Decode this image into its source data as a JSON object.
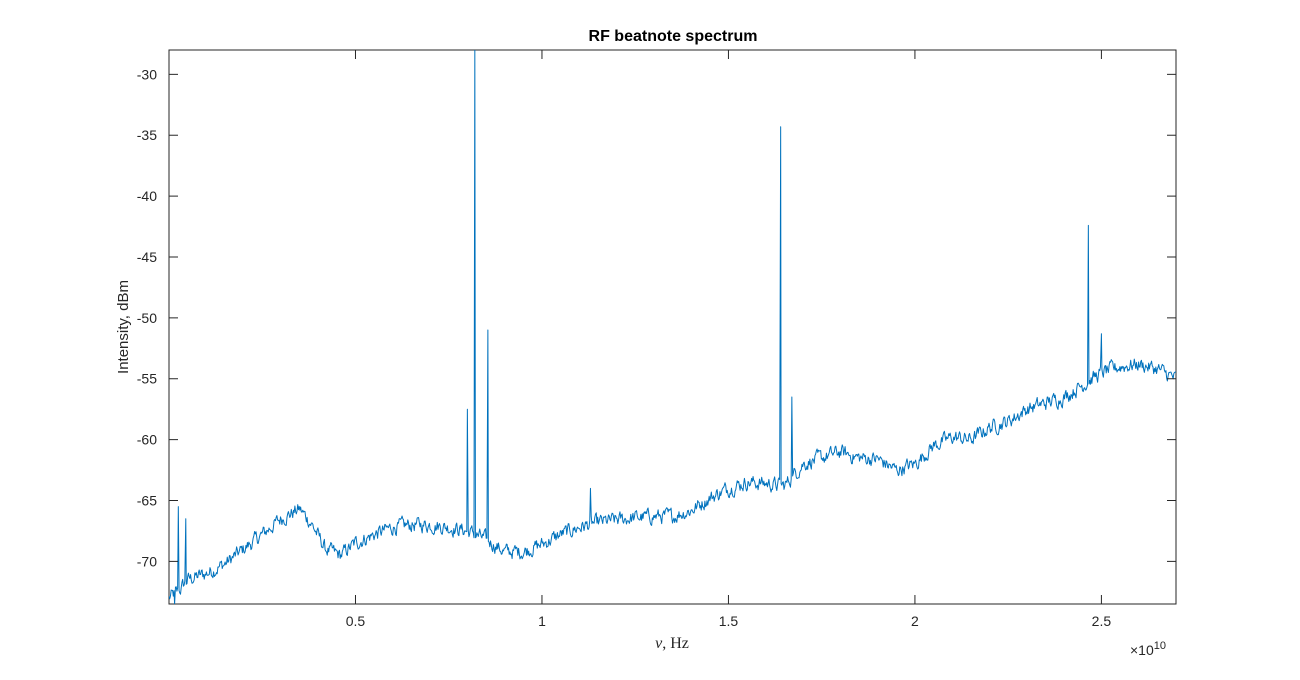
{
  "chart_data": {
    "type": "line",
    "title": "RF beatnote spectrum",
    "xlabel_symbol": "ν",
    "xlabel_unit": ", Hz",
    "ylabel": "Intensity, dBm",
    "x_exponent_base": "×10",
    "x_exponent_power": "10",
    "xlim": [
      0.0,
      27000000000.0
    ],
    "ylim": [
      -73.5,
      -28.0
    ],
    "x_ticks": [
      5000000000.0,
      10000000000.0,
      15000000000.0,
      20000000000.0,
      25000000000.0
    ],
    "x_tick_labels": [
      "0.5",
      "1",
      "1.5",
      "2",
      "2.5"
    ],
    "y_ticks": [
      -30,
      -35,
      -40,
      -45,
      -50,
      -55,
      -60,
      -65,
      -70
    ],
    "y_tick_labels": [
      "-30",
      "-35",
      "-40",
      "-45",
      "-50",
      "-55",
      "-60",
      "-65",
      "-70"
    ],
    "grid": false,
    "series": [
      {
        "color": "#0072BD",
        "baseline": {
          "x": [
            0.0,
            250000000.0,
            500000000.0,
            1000000000.0,
            1500000000.0,
            2000000000.0,
            2500000000.0,
            3000000000.0,
            3500000000.0,
            3800000000.0,
            4200000000.0,
            4600000000.0,
            5000000000.0,
            5500000000.0,
            6000000000.0,
            6500000000.0,
            7000000000.0,
            7500000000.0,
            8000000000.0,
            8500000000.0,
            9000000000.0,
            9500000000.0,
            10000000000.0,
            10500000000.0,
            11000000000.0,
            11500000000.0,
            12000000000.0,
            12500000000.0,
            13000000000.0,
            13500000000.0,
            14000000000.0,
            14500000000.0,
            15000000000.0,
            15500000000.0,
            16000000000.0,
            16500000000.0,
            17000000000.0,
            17500000000.0,
            18000000000.0,
            18500000000.0,
            19000000000.0,
            19500000000.0,
            20000000000.0,
            20500000000.0,
            21000000000.0,
            21500000000.0,
            22000000000.0,
            22500000000.0,
            23000000000.0,
            23500000000.0,
            24000000000.0,
            24500000000.0,
            25000000000.0,
            25500000000.0,
            26000000000.0,
            26500000000.0,
            27000000000.0
          ],
          "y": [
            -73.0,
            -72.5,
            -71.5,
            -71.0,
            -70.2,
            -69.0,
            -67.8,
            -66.5,
            -65.7,
            -66.8,
            -69.0,
            -69.5,
            -68.5,
            -67.8,
            -67.2,
            -67.0,
            -67.0,
            -67.2,
            -67.5,
            -68.2,
            -69.2,
            -69.2,
            -68.6,
            -67.8,
            -67.2,
            -66.8,
            -66.6,
            -66.4,
            -66.3,
            -66.3,
            -65.8,
            -64.8,
            -64.0,
            -63.5,
            -63.6,
            -63.8,
            -62.0,
            -61.5,
            -61.0,
            -61.5,
            -61.6,
            -62.5,
            -62.0,
            -60.5,
            -59.8,
            -60.0,
            -59.0,
            -58.5,
            -57.5,
            -57.0,
            -56.5,
            -55.5,
            -54.5,
            -54.0,
            -53.8,
            -54.2,
            -55.0
          ]
        },
        "spikes": [
          {
            "x": 150000000.0,
            "y": -73.5
          },
          {
            "x": 250000000.0,
            "y": -65.5
          },
          {
            "x": 450000000.0,
            "y": -66.5
          },
          {
            "x": 8000000000.0,
            "y": -57.5
          },
          {
            "x": 8200000000.0,
            "y": -28.0
          },
          {
            "x": 8550000000.0,
            "y": -51.0
          },
          {
            "x": 11300000000.0,
            "y": -64.0
          },
          {
            "x": 16400000000.0,
            "y": -34.3
          },
          {
            "x": 16700000000.0,
            "y": -56.5
          },
          {
            "x": 24650000000.0,
            "y": -42.4
          },
          {
            "x": 25000000000.0,
            "y": -51.3
          }
        ]
      }
    ]
  }
}
